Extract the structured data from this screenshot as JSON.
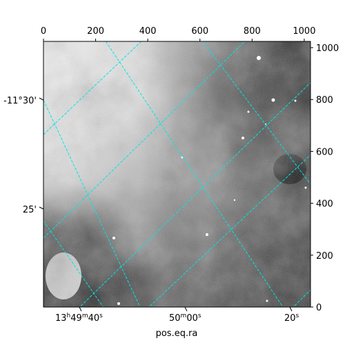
{
  "chart_data": {
    "type": "image",
    "xlabel": "pos.eq.ra",
    "ylabel": "",
    "pixel_axes": {
      "x": {
        "ticks": [
          0,
          200,
          400,
          600,
          800,
          1000
        ],
        "range": [
          0,
          1024
        ]
      },
      "y": {
        "ticks": [
          0,
          200,
          400,
          600,
          800,
          1000
        ],
        "range": [
          0,
          1024
        ]
      }
    },
    "world_axes": {
      "ra": {
        "labels": [
          {
            "h": "13",
            "m": "49",
            "s": "40",
            "text": "13h49m40s"
          },
          {
            "m": "50",
            "s": "00",
            "text": "50m00s"
          },
          {
            "s": "20",
            "text": "20s"
          }
        ]
      },
      "dec": {
        "labels": [
          "-11°30'",
          "25'"
        ]
      }
    },
    "grid": true,
    "grid_color": "#00e5e5",
    "colormap": "grayscale"
  }
}
